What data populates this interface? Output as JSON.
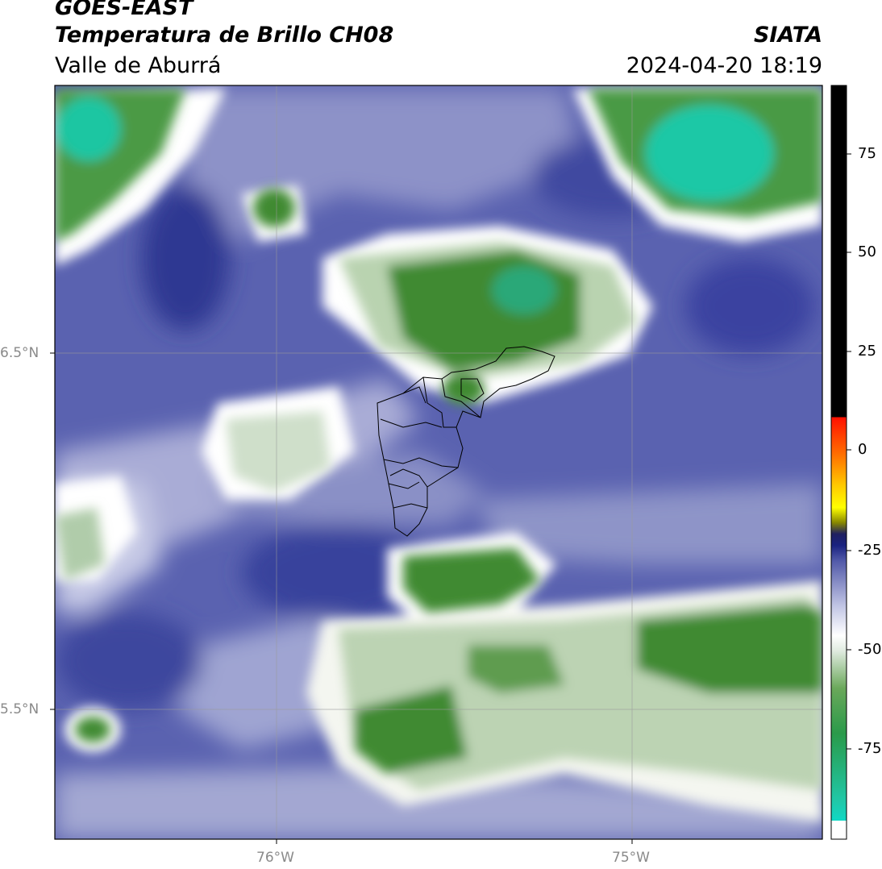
{
  "header": {
    "satellite": "GOES-EAST",
    "product": "Temperatura de Brillo CH08",
    "region": "Valle de Aburrá",
    "agency": "SIATA",
    "datetime": "2024-04-20 18:19"
  },
  "axes": {
    "lat_labels": [
      "6.5°N",
      "5.5°N"
    ],
    "lon_labels": [
      "76°W",
      "75°W"
    ]
  },
  "colorbar": {
    "ticks": [
      "75",
      "50",
      "25",
      "0",
      "-25",
      "-50",
      "-75"
    ],
    "colors": {
      "hot": "#000000",
      "warm": [
        "#ff2000",
        "#ff8000",
        "#ffd000",
        "#ffff00"
      ],
      "cold": [
        "#00e0d8",
        "#1fc9a8",
        "#2a9a4a",
        "#3a8a2a"
      ],
      "mid": [
        "#ffffff",
        "#c8cce8",
        "#5058a8",
        "#1e2a8a"
      ]
    }
  },
  "legend": {
    "field_colors": {
      "deep_blue": "#2b3590",
      "blue": "#4a52a8",
      "lavender": "#9ea3d2",
      "white": "#ffffff",
      "light_green": "#c9dcc4",
      "green": "#4a8a3a",
      "teal": "#20c8a8"
    }
  }
}
